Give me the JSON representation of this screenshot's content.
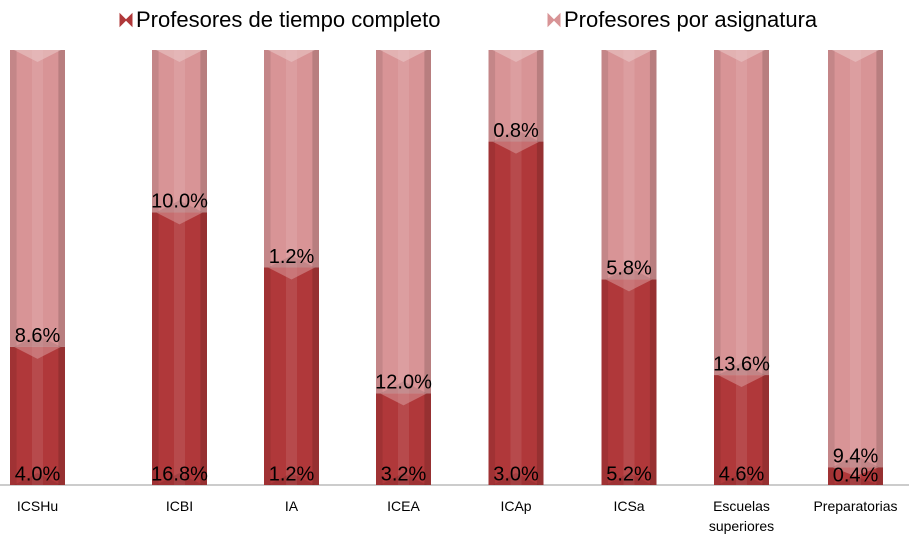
{
  "chart_data": {
    "type": "bar",
    "stacking": "percent",
    "categories": [
      "ICSHu",
      "ICBI",
      "IA",
      "ICEA",
      "ICAp",
      "ICSa",
      "Escuelas superiores",
      "Preparatorias"
    ],
    "series": [
      {
        "name": "Profesores de tiempo completo",
        "color": "#b0383a",
        "values": [
          4.0,
          16.8,
          1.2,
          3.2,
          3.0,
          5.2,
          4.6,
          0.4
        ],
        "value_labels": [
          "4.0%",
          "16.8%",
          "1.2%",
          "3.2%",
          "3.0%",
          "5.2%",
          "4.6%",
          "0.4%"
        ]
      },
      {
        "name": "Profesores por asignatura",
        "color": "#d89496",
        "values": [
          8.6,
          10.0,
          1.2,
          12.0,
          0.8,
          5.8,
          13.6,
          9.4
        ],
        "value_labels": [
          "8.6%",
          "10.0%",
          "1.2%",
          "12.0%",
          "0.8%",
          "5.8%",
          "13.6%",
          "9.4%"
        ]
      }
    ],
    "legend": "top"
  }
}
